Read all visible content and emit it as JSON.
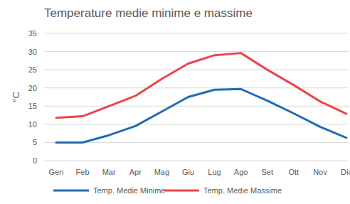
{
  "chart_data": {
    "type": "line",
    "title": "Temperature medie minime e massime",
    "y_label": "°C",
    "categories": [
      "Gen",
      "Feb",
      "Mar",
      "Apr",
      "Mag",
      "Giu",
      "Lug",
      "Ago",
      "Set",
      "Ott",
      "Nov",
      "Dic"
    ],
    "series": [
      {
        "name": "Temp. Medie Minime",
        "color": "#1f6cb5",
        "values": [
          5,
          5,
          7,
          9.5,
          13.5,
          17.5,
          19.5,
          19.7,
          16.5,
          13,
          9.3,
          6.3
        ]
      },
      {
        "name": "Temp. Medie Massime",
        "color": "#e8474c",
        "values": [
          11.8,
          12.2,
          15,
          17.8,
          22.5,
          26.7,
          29,
          29.6,
          25,
          20.8,
          16.3,
          12.9
        ]
      }
    ],
    "ylim": [
      0,
      35
    ],
    "yticks": [
      0,
      5,
      10,
      15,
      20,
      25,
      30,
      35
    ],
    "grid": true,
    "legend": "bottom"
  }
}
